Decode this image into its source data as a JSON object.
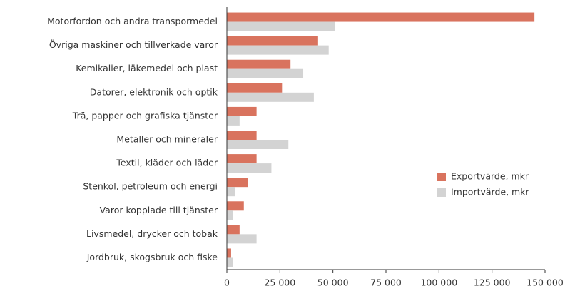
{
  "chart_data": {
    "type": "hbar",
    "categories": [
      "Motorfordon och andra transpormedel",
      "Övriga maskiner och tillverkade varor",
      "Kemikalier, läkemedel och plast",
      "Datorer, elektronik och optik",
      "Trä, papper och grafiska tjänster",
      "Metaller och mineraler",
      "Textil, kläder och läder",
      "Stenkol, petroleum och energi",
      "Varor kopplade till tjänster",
      "Livsmedel, drycker och tobak",
      "Jordbruk, skogsbruk och fiske"
    ],
    "series": [
      {
        "name": "Exportvärde, mkr",
        "color": "#d9735e",
        "values": [
          145000,
          43000,
          30000,
          26000,
          14000,
          14000,
          14000,
          10000,
          8000,
          6000,
          2000
        ]
      },
      {
        "name": "Importvärde, mkr",
        "color": "#d3d3d3",
        "values": [
          51000,
          48000,
          36000,
          41000,
          6000,
          29000,
          21000,
          4000,
          3000,
          14000,
          3000
        ]
      }
    ],
    "xlim": [
      0,
      150000
    ],
    "xticks": [
      0,
      {
        "value": 25000,
        "label": "25 000"
      },
      {
        "value": 50000,
        "label": "50 000"
      },
      {
        "value": 75000,
        "label": "75 000"
      },
      {
        "value": 100000,
        "label": "100 000"
      },
      {
        "value": 125000,
        "label": "125 000"
      },
      {
        "value": 150000,
        "label": "150 000"
      }
    ],
    "legend": "right"
  }
}
